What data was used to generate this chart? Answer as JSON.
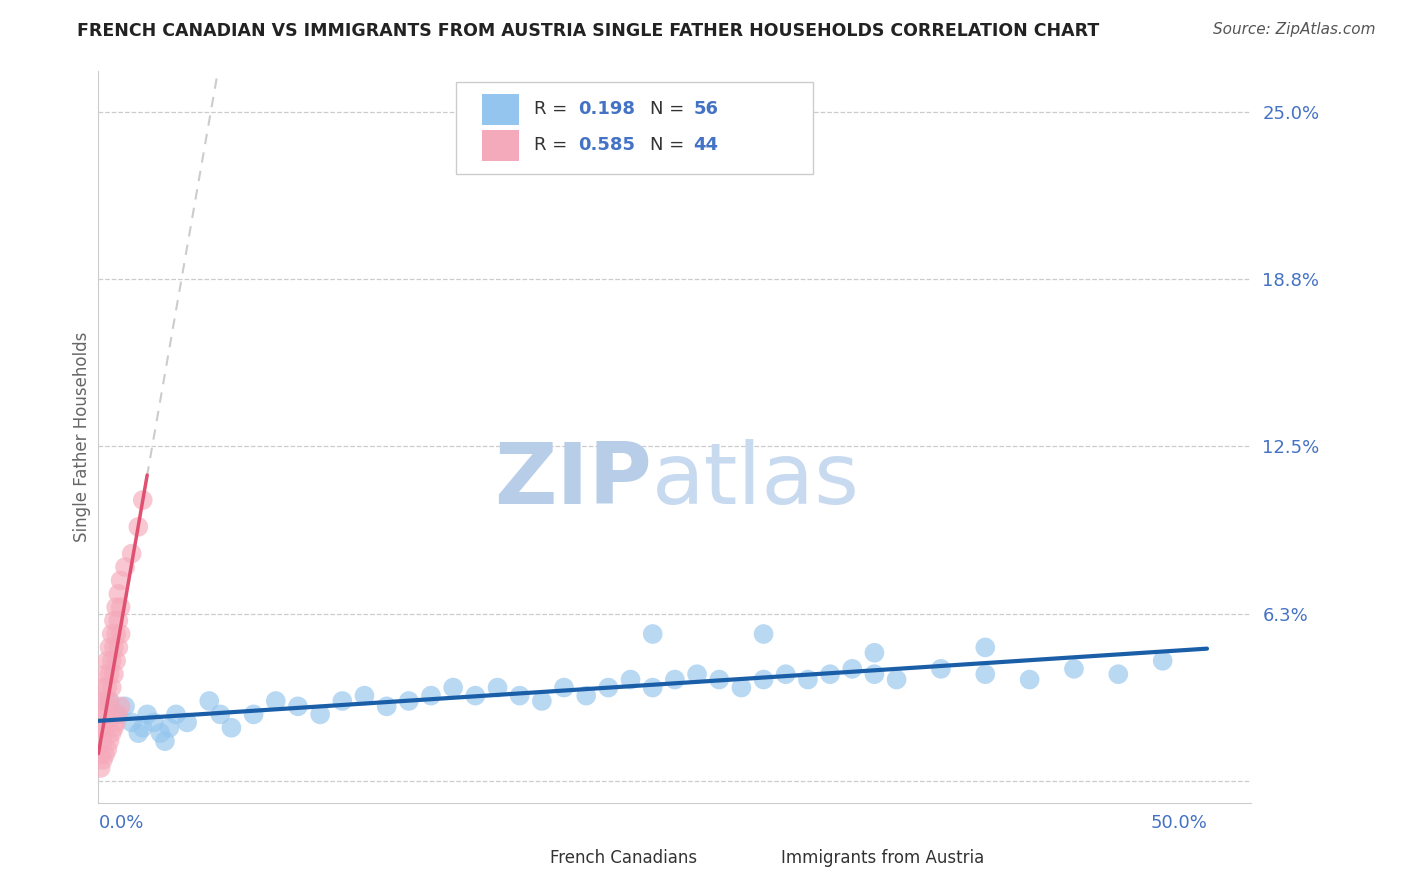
{
  "title": "FRENCH CANADIAN VS IMMIGRANTS FROM AUSTRIA SINGLE FATHER HOUSEHOLDS CORRELATION CHART",
  "source": "Source: ZipAtlas.com",
  "ylabel": "Single Father Households",
  "ytick_vals": [
    0.0,
    0.0625,
    0.125,
    0.1875,
    0.25
  ],
  "ytick_labels": [
    "",
    "6.3%",
    "12.5%",
    "18.8%",
    "25.0%"
  ],
  "xlim": [
    0.0,
    0.52
  ],
  "ylim": [
    -0.008,
    0.265
  ],
  "blue_R": "0.198",
  "blue_N": "56",
  "pink_R": "0.585",
  "pink_N": "44",
  "blue_color": "#94C5EE",
  "pink_color": "#F5AABB",
  "blue_line_color": "#1B5EA8",
  "pink_line_color": "#E05070",
  "title_color": "#222222",
  "axis_label_color": "#4472C4",
  "watermark_color": "#D5E4F5",
  "legend_label_blue": "French Canadians",
  "legend_label_pink": "Immigrants from Austria",
  "blue_x": [
    0.005,
    0.008,
    0.012,
    0.015,
    0.018,
    0.02,
    0.022,
    0.025,
    0.028,
    0.03,
    0.032,
    0.035,
    0.04,
    0.05,
    0.055,
    0.06,
    0.07,
    0.08,
    0.09,
    0.1,
    0.11,
    0.12,
    0.13,
    0.14,
    0.15,
    0.16,
    0.17,
    0.18,
    0.19,
    0.2,
    0.21,
    0.22,
    0.23,
    0.24,
    0.25,
    0.26,
    0.27,
    0.28,
    0.29,
    0.3,
    0.31,
    0.32,
    0.33,
    0.34,
    0.35,
    0.36,
    0.38,
    0.4,
    0.42,
    0.44,
    0.46,
    0.48,
    0.25,
    0.3,
    0.35,
    0.4
  ],
  "blue_y": [
    0.03,
    0.025,
    0.028,
    0.022,
    0.018,
    0.02,
    0.025,
    0.022,
    0.018,
    0.015,
    0.02,
    0.025,
    0.022,
    0.03,
    0.025,
    0.02,
    0.025,
    0.03,
    0.028,
    0.025,
    0.03,
    0.032,
    0.028,
    0.03,
    0.032,
    0.035,
    0.032,
    0.035,
    0.032,
    0.03,
    0.035,
    0.032,
    0.035,
    0.038,
    0.035,
    0.038,
    0.04,
    0.038,
    0.035,
    0.038,
    0.04,
    0.038,
    0.04,
    0.042,
    0.04,
    0.038,
    0.042,
    0.04,
    0.038,
    0.042,
    0.04,
    0.045,
    0.055,
    0.055,
    0.048,
    0.05
  ],
  "pink_x": [
    0.001,
    0.002,
    0.003,
    0.004,
    0.005,
    0.006,
    0.007,
    0.008,
    0.009,
    0.01,
    0.001,
    0.002,
    0.003,
    0.004,
    0.005,
    0.006,
    0.007,
    0.008,
    0.009,
    0.01,
    0.001,
    0.002,
    0.003,
    0.004,
    0.005,
    0.006,
    0.007,
    0.008,
    0.009,
    0.01,
    0.001,
    0.002,
    0.003,
    0.004,
    0.005,
    0.006,
    0.007,
    0.008,
    0.009,
    0.01,
    0.012,
    0.015,
    0.018,
    0.02
  ],
  "pink_y": [
    0.005,
    0.008,
    0.01,
    0.012,
    0.015,
    0.018,
    0.02,
    0.022,
    0.025,
    0.028,
    0.01,
    0.015,
    0.02,
    0.025,
    0.03,
    0.035,
    0.04,
    0.045,
    0.05,
    0.055,
    0.02,
    0.025,
    0.03,
    0.035,
    0.04,
    0.045,
    0.05,
    0.055,
    0.06,
    0.065,
    0.03,
    0.035,
    0.04,
    0.045,
    0.05,
    0.055,
    0.06,
    0.065,
    0.07,
    0.075,
    0.08,
    0.085,
    0.095,
    0.105
  ]
}
